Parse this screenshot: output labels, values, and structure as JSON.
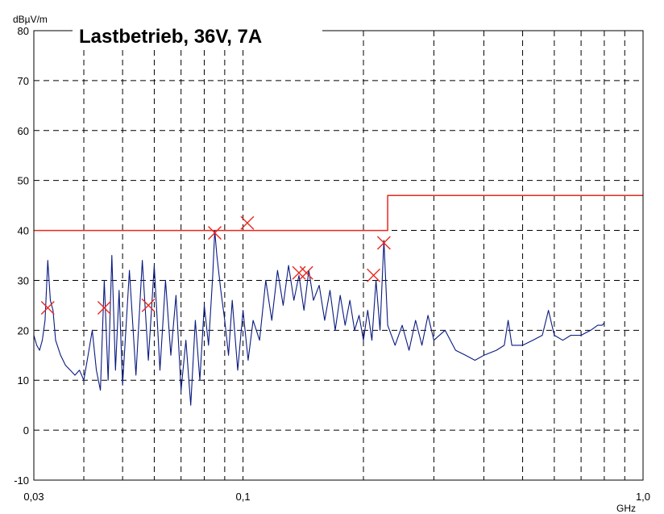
{
  "chart_data": {
    "type": "line",
    "title": "Lastbetrieb, 36V, 7A",
    "ylabel": "dBµV/m",
    "xlabel": "GHz",
    "x_scale": "log",
    "xlim": [
      0.03,
      1.0
    ],
    "ylim": [
      -10,
      80
    ],
    "grid": true,
    "x_tick_labels": [
      {
        "value": 0.03,
        "label": "0,03"
      },
      {
        "value": 0.1,
        "label": "0,1"
      },
      {
        "value": 1.0,
        "label": "1,0"
      }
    ],
    "x_minor_grid": [
      0.04,
      0.05,
      0.06,
      0.07,
      0.08,
      0.09,
      0.2,
      0.3,
      0.4,
      0.5,
      0.6,
      0.7,
      0.8,
      0.9
    ],
    "y_ticks": [
      -10,
      0,
      10,
      20,
      30,
      40,
      50,
      60,
      70,
      80
    ],
    "colors": {
      "trace": "#0a1a80",
      "limit": "#e8281e",
      "marker": "#e8281e",
      "grid": "#000000",
      "axis": "#000000"
    },
    "series": [
      {
        "kind": "trace",
        "points": [
          [
            0.03,
            19
          ],
          [
            0.0305,
            17
          ],
          [
            0.031,
            16
          ],
          [
            0.0315,
            18
          ],
          [
            0.032,
            22
          ],
          [
            0.0325,
            34
          ],
          [
            0.033,
            26
          ],
          [
            0.0335,
            24
          ],
          [
            0.034,
            18
          ],
          [
            0.035,
            15
          ],
          [
            0.036,
            13
          ],
          [
            0.037,
            12
          ],
          [
            0.038,
            11
          ],
          [
            0.039,
            12
          ],
          [
            0.04,
            10
          ],
          [
            0.041,
            15
          ],
          [
            0.042,
            20
          ],
          [
            0.043,
            12
          ],
          [
            0.044,
            8
          ],
          [
            0.045,
            30
          ],
          [
            0.046,
            10
          ],
          [
            0.047,
            35
          ],
          [
            0.048,
            12
          ],
          [
            0.049,
            28
          ],
          [
            0.05,
            9
          ],
          [
            0.052,
            32
          ],
          [
            0.054,
            11
          ],
          [
            0.056,
            34
          ],
          [
            0.058,
            14
          ],
          [
            0.06,
            33
          ],
          [
            0.062,
            12
          ],
          [
            0.064,
            30
          ],
          [
            0.066,
            15
          ],
          [
            0.068,
            27
          ],
          [
            0.07,
            8
          ],
          [
            0.072,
            18
          ],
          [
            0.074,
            5
          ],
          [
            0.076,
            22
          ],
          [
            0.078,
            10
          ],
          [
            0.08,
            25
          ],
          [
            0.082,
            17
          ],
          [
            0.084,
            31
          ],
          [
            0.085,
            40
          ],
          [
            0.086,
            35
          ],
          [
            0.088,
            28
          ],
          [
            0.09,
            22
          ],
          [
            0.092,
            15
          ],
          [
            0.094,
            26
          ],
          [
            0.097,
            12
          ],
          [
            0.1,
            24
          ],
          [
            0.103,
            14
          ],
          [
            0.106,
            22
          ],
          [
            0.11,
            18
          ],
          [
            0.114,
            30
          ],
          [
            0.118,
            22
          ],
          [
            0.122,
            32
          ],
          [
            0.126,
            25
          ],
          [
            0.13,
            33
          ],
          [
            0.134,
            26
          ],
          [
            0.138,
            31
          ],
          [
            0.142,
            24
          ],
          [
            0.146,
            32
          ],
          [
            0.15,
            26
          ],
          [
            0.155,
            29
          ],
          [
            0.16,
            22
          ],
          [
            0.165,
            28
          ],
          [
            0.17,
            20
          ],
          [
            0.175,
            27
          ],
          [
            0.18,
            21
          ],
          [
            0.185,
            26
          ],
          [
            0.19,
            20
          ],
          [
            0.195,
            23
          ],
          [
            0.2,
            18
          ],
          [
            0.205,
            24
          ],
          [
            0.21,
            18
          ],
          [
            0.215,
            30
          ],
          [
            0.22,
            20
          ],
          [
            0.225,
            38
          ],
          [
            0.23,
            21
          ],
          [
            0.24,
            17
          ],
          [
            0.25,
            21
          ],
          [
            0.26,
            16
          ],
          [
            0.27,
            22
          ],
          [
            0.28,
            17
          ],
          [
            0.29,
            23
          ],
          [
            0.3,
            18
          ],
          [
            0.32,
            20
          ],
          [
            0.34,
            16
          ],
          [
            0.36,
            15
          ],
          [
            0.38,
            14
          ],
          [
            0.4,
            15
          ],
          [
            0.43,
            16
          ],
          [
            0.45,
            17
          ],
          [
            0.46,
            22
          ],
          [
            0.47,
            17
          ],
          [
            0.5,
            17
          ],
          [
            0.53,
            18
          ],
          [
            0.56,
            19
          ],
          [
            0.58,
            24
          ],
          [
            0.6,
            19
          ],
          [
            0.63,
            18
          ],
          [
            0.66,
            19
          ],
          [
            0.7,
            19
          ],
          [
            0.74,
            20
          ],
          [
            0.77,
            21
          ],
          [
            0.79,
            21
          ],
          [
            0.8,
            21.5
          ]
        ]
      },
      {
        "kind": "limit",
        "points": [
          [
            0.03,
            40
          ],
          [
            0.23,
            40
          ],
          [
            0.23,
            47
          ],
          [
            1.0,
            47
          ]
        ]
      },
      {
        "kind": "markers",
        "points": [
          [
            0.0325,
            24.5
          ],
          [
            0.045,
            24.5
          ],
          [
            0.058,
            25
          ],
          [
            0.085,
            39.5
          ],
          [
            0.1025,
            41.5
          ],
          [
            0.138,
            31.5
          ],
          [
            0.144,
            31.5
          ],
          [
            0.212,
            31
          ],
          [
            0.225,
            37.5
          ]
        ]
      }
    ]
  }
}
